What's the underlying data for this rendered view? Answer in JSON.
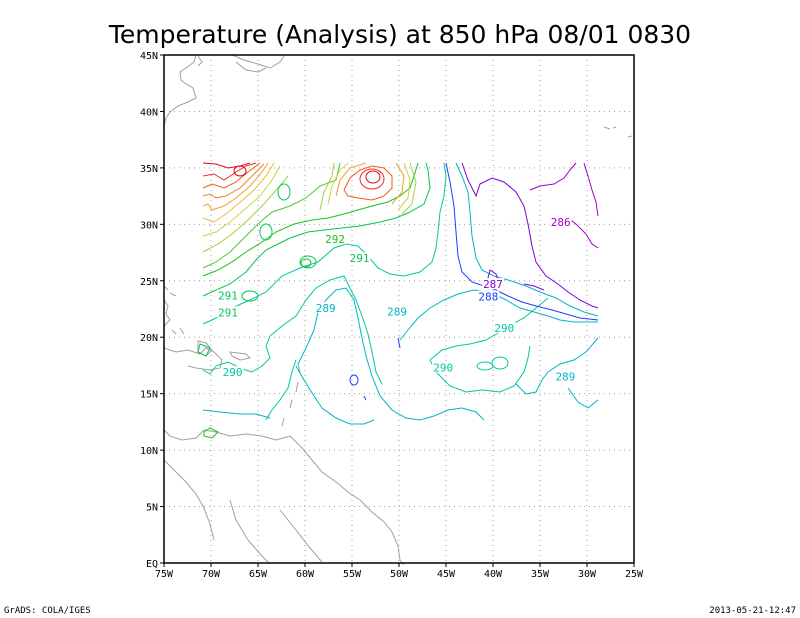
{
  "title": "Temperature (Analysis) at 850 hPa 08/01 0830",
  "footer": {
    "left": "GrADS: COLA/IGES",
    "right": "2013-05-21-12:47"
  },
  "chart_data": {
    "type": "contour_map",
    "title": "Temperature (Analysis) at 850 hPa 08/01 0830",
    "lon_range": [
      -75,
      -25
    ],
    "lat_range": [
      0,
      45
    ],
    "grid": true,
    "x_ticks": [
      "75W",
      "70W",
      "65W",
      "60W",
      "55W",
      "50W",
      "45W",
      "40W",
      "35W",
      "30W",
      "25W"
    ],
    "y_ticks": [
      "EQ",
      "5N",
      "10N",
      "15N",
      "20N",
      "25N",
      "30N",
      "35N",
      "40N",
      "45N"
    ],
    "contour_labels": [
      {
        "text": "292",
        "lon": -56.8,
        "lat": 28.7,
        "color": "#19c119"
      },
      {
        "text": "291",
        "lon": -54.2,
        "lat": 27.0,
        "color": "#00c850"
      },
      {
        "text": "291",
        "lon": -68.2,
        "lat": 23.7,
        "color": "#00c850"
      },
      {
        "text": "291",
        "lon": -68.2,
        "lat": 22.2,
        "color": "#00c850"
      },
      {
        "text": "290",
        "lon": -67.7,
        "lat": 16.9,
        "color": "#00c8a0"
      },
      {
        "text": "289",
        "lon": -57.8,
        "lat": 22.6,
        "color": "#00b4c8"
      },
      {
        "text": "289",
        "lon": -50.2,
        "lat": 22.3,
        "color": "#00b4c8"
      },
      {
        "text": "290",
        "lon": -45.3,
        "lat": 17.3,
        "color": "#00c8a0"
      },
      {
        "text": "290",
        "lon": -38.8,
        "lat": 20.8,
        "color": "#00c8a0"
      },
      {
        "text": "289",
        "lon": -32.3,
        "lat": 16.5,
        "color": "#00b4c8"
      },
      {
        "text": "288",
        "lon": -40.5,
        "lat": 23.6,
        "color": "#1e3cff"
      },
      {
        "text": "287",
        "lon": -40.0,
        "lat": 24.7,
        "color": "#8200dc"
      },
      {
        "text": "286",
        "lon": -32.8,
        "lat": 30.2,
        "color": "#a000c8"
      }
    ]
  }
}
